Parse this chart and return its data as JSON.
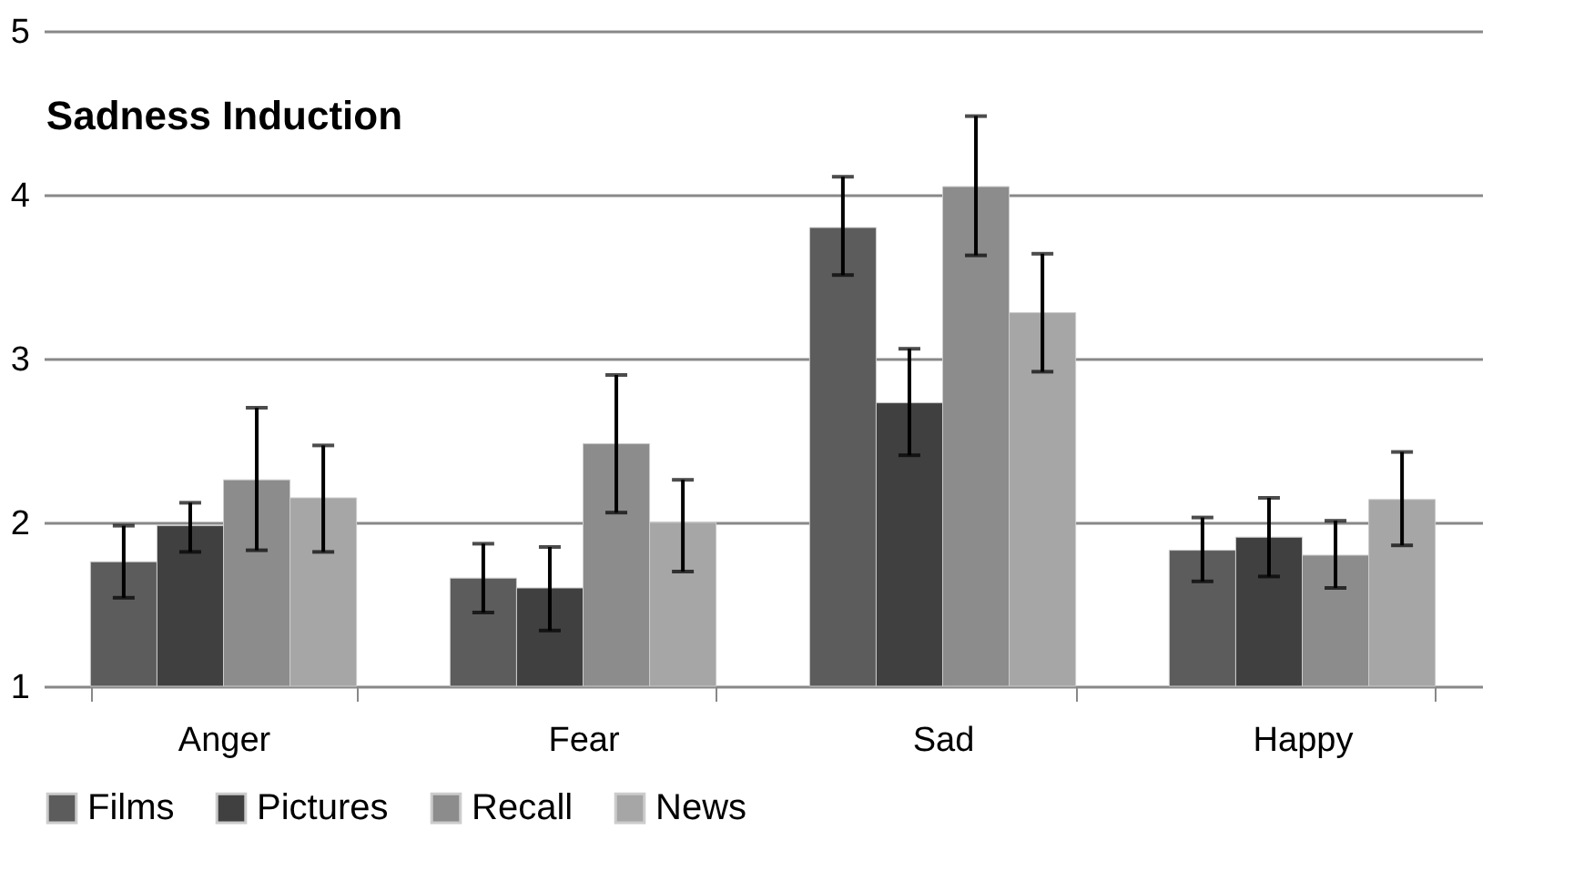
{
  "chart_data": {
    "type": "bar",
    "title": "Sadness Induction",
    "categories": [
      "Anger",
      "Fear",
      "Sad",
      "Happy"
    ],
    "series": [
      {
        "name": "Films",
        "color": "#5c5c5c",
        "values": [
          1.76,
          1.66,
          3.8,
          1.83
        ],
        "errors": [
          [
            1.54,
            1.98
          ],
          [
            1.45,
            1.87
          ],
          [
            3.51,
            4.11
          ],
          [
            1.64,
            2.03
          ]
        ]
      },
      {
        "name": "Pictures",
        "color": "#404040",
        "values": [
          1.98,
          1.6,
          2.73,
          1.91
        ],
        "errors": [
          [
            1.82,
            2.12
          ],
          [
            1.34,
            1.85
          ],
          [
            2.41,
            3.06
          ],
          [
            1.67,
            2.15
          ]
        ]
      },
      {
        "name": "Recall",
        "color": "#8c8c8c",
        "values": [
          2.26,
          2.48,
          4.05,
          1.8
        ],
        "errors": [
          [
            1.83,
            2.7
          ],
          [
            2.06,
            2.9
          ],
          [
            3.63,
            4.48
          ],
          [
            1.6,
            2.01
          ]
        ]
      },
      {
        "name": "News",
        "color": "#a6a6a6",
        "values": [
          2.15,
          2.0,
          3.28,
          2.14
        ],
        "errors": [
          [
            1.82,
            2.47
          ],
          [
            1.7,
            2.26
          ],
          [
            2.92,
            3.64
          ],
          [
            1.86,
            2.43
          ]
        ]
      }
    ],
    "ylim": [
      1,
      5
    ],
    "yticks": [
      1,
      2,
      3,
      4,
      5
    ],
    "grid": "y",
    "legend": "bottom"
  }
}
